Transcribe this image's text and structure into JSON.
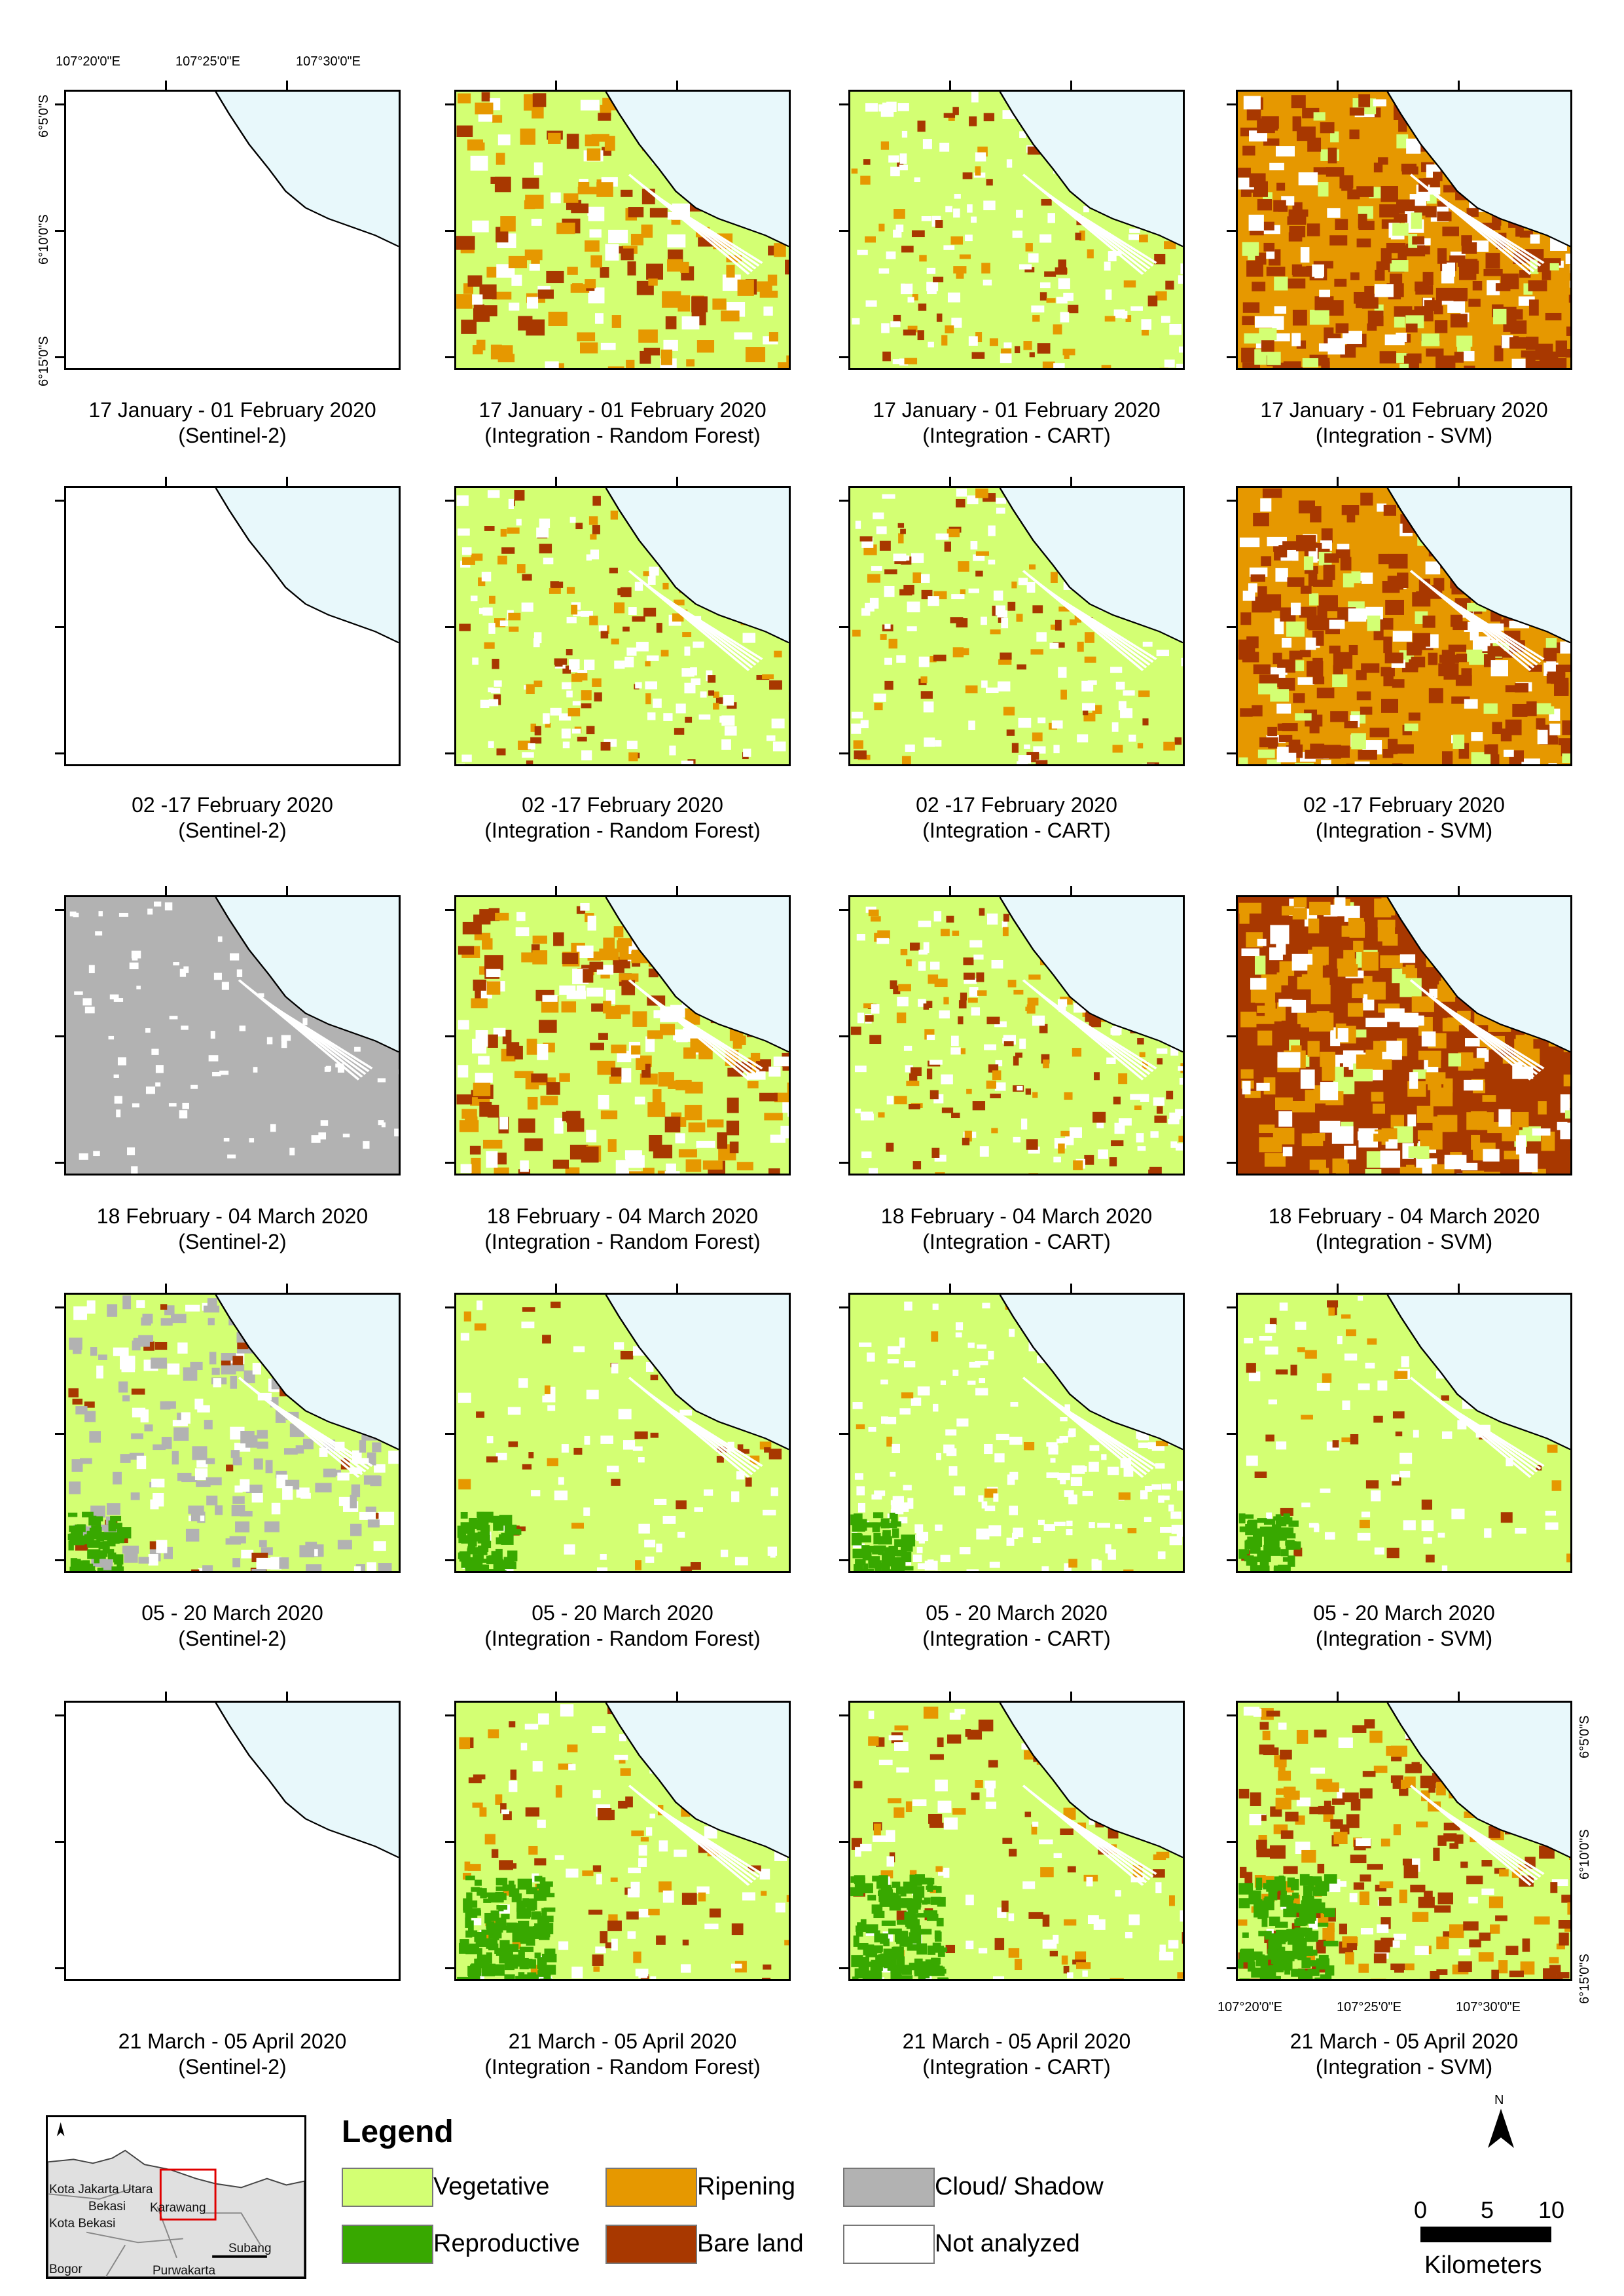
{
  "coordinates": {
    "top_longitudes": [
      "107°20'0\"E",
      "107°25'0\"E",
      "107°30'0\"E"
    ],
    "left_latitudes": [
      "6°5'0\"S",
      "6°10'0\"S",
      "6°15'0\"S"
    ],
    "bottom_longitudes": [
      "107°20'0\"E",
      "107°25'0\"E",
      "107°30'0\"E"
    ],
    "right_latitudes": [
      "6°5'0\"S",
      "6°10'0\"S",
      "6°15'0\"S"
    ]
  },
  "rows": [
    {
      "date": "17 January - 01 February 2020",
      "panels": [
        {
          "method": "(Sentinel-2)",
          "map": "blank"
        },
        {
          "method": "(Integration - Random Forest)",
          "map": "mixed"
        },
        {
          "method": "(Integration - CART)",
          "map": "mixed-light"
        },
        {
          "method": "(Integration - SVM)",
          "map": "ripening-dense"
        }
      ]
    },
    {
      "date": "02 -17 February 2020",
      "panels": [
        {
          "method": "(Sentinel-2)",
          "map": "blank"
        },
        {
          "method": "(Integration - Random Forest)",
          "map": "mixed-light"
        },
        {
          "method": "(Integration - CART)",
          "map": "mixed-light"
        },
        {
          "method": "(Integration - SVM)",
          "map": "ripening-dense"
        }
      ]
    },
    {
      "date": "18 February - 04 March 2020",
      "panels": [
        {
          "method": "(Sentinel-2)",
          "map": "cloud"
        },
        {
          "method": "(Integration - Random Forest)",
          "map": "mixed"
        },
        {
          "method": "(Integration - CART)",
          "map": "mixed-light"
        },
        {
          "method": "(Integration - SVM)",
          "map": "bare-dense"
        }
      ]
    },
    {
      "date": "05 - 20 March 2020",
      "panels": [
        {
          "method": "(Sentinel-2)",
          "map": "veg-cloud"
        },
        {
          "method": "(Integration - Random Forest)",
          "map": "veg"
        },
        {
          "method": "(Integration - CART)",
          "map": "veg-white"
        },
        {
          "method": "(Integration - SVM)",
          "map": "veg"
        }
      ]
    },
    {
      "date": "21 March - 05 April 2020",
      "panels": [
        {
          "method": "(Sentinel-2)",
          "map": "blank"
        },
        {
          "method": "(Integration - Random Forest)",
          "map": "veg-repro"
        },
        {
          "method": "(Integration - CART)",
          "map": "veg-repro"
        },
        {
          "method": "(Integration - SVM)",
          "map": "veg-repro-bare"
        }
      ]
    }
  ],
  "legend": {
    "title": "Legend",
    "items": [
      {
        "label": "Vegetative",
        "color": "#d3ff73"
      },
      {
        "label": "Ripening",
        "color": "#e69800"
      },
      {
        "label": "Cloud/ Shadow",
        "color": "#b2b2b2"
      },
      {
        "label": "Reproductive",
        "color": "#38a800"
      },
      {
        "label": "Bare land",
        "color": "#a83800"
      },
      {
        "label": "Not analyzed",
        "color": "#ffffff"
      }
    ]
  },
  "sea_color": "#e8f8fb",
  "inset": {
    "labels": [
      "Kota Jakarta Utara",
      "Bekasi",
      "Kota Bekasi",
      "Karawang",
      "Subang",
      "Bogor",
      "Purwakarta"
    ]
  },
  "north_arrow": "N",
  "scale": {
    "ticks": [
      "0",
      "5",
      "10"
    ],
    "unit": "Kilometers"
  }
}
